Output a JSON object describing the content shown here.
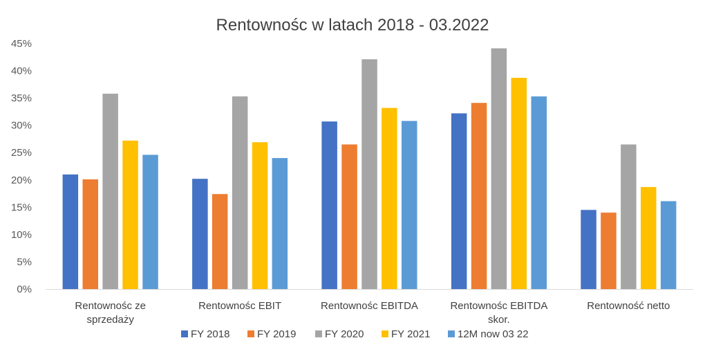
{
  "chart_data": {
    "type": "bar",
    "title": "Rentownośc w latach 2018 - 03.2022",
    "categories": [
      [
        "Rentownośc ze",
        "sprzedaży"
      ],
      [
        "Rentownośc EBIT"
      ],
      [
        "Rentownośc EBITDA"
      ],
      [
        "Rentownośc EBITDA",
        "skor."
      ],
      [
        "Rentowność netto"
      ]
    ],
    "series": [
      {
        "name": "FY 2018",
        "color": "#4472C4",
        "values": [
          21.0,
          20.2,
          30.7,
          32.2,
          14.5
        ]
      },
      {
        "name": "FY 2019",
        "color": "#ED7D31",
        "values": [
          20.1,
          17.4,
          26.5,
          34.1,
          14.0
        ]
      },
      {
        "name": "FY 2020",
        "color": "#A5A5A5",
        "values": [
          35.8,
          35.3,
          42.1,
          44.1,
          26.5
        ]
      },
      {
        "name": "FY 2021",
        "color": "#FFC000",
        "values": [
          27.2,
          26.9,
          33.2,
          38.7,
          18.7
        ]
      },
      {
        "name": "12M now 03 22",
        "color": "#5B9BD5",
        "values": [
          24.6,
          24.0,
          30.8,
          35.3,
          16.1
        ]
      }
    ],
    "y_ticks": [
      "0%",
      "5%",
      "10%",
      "15%",
      "20%",
      "25%",
      "30%",
      "35%",
      "40%",
      "45%"
    ],
    "ylim": [
      0,
      45
    ],
    "grid": false,
    "legend_position": "bottom"
  }
}
